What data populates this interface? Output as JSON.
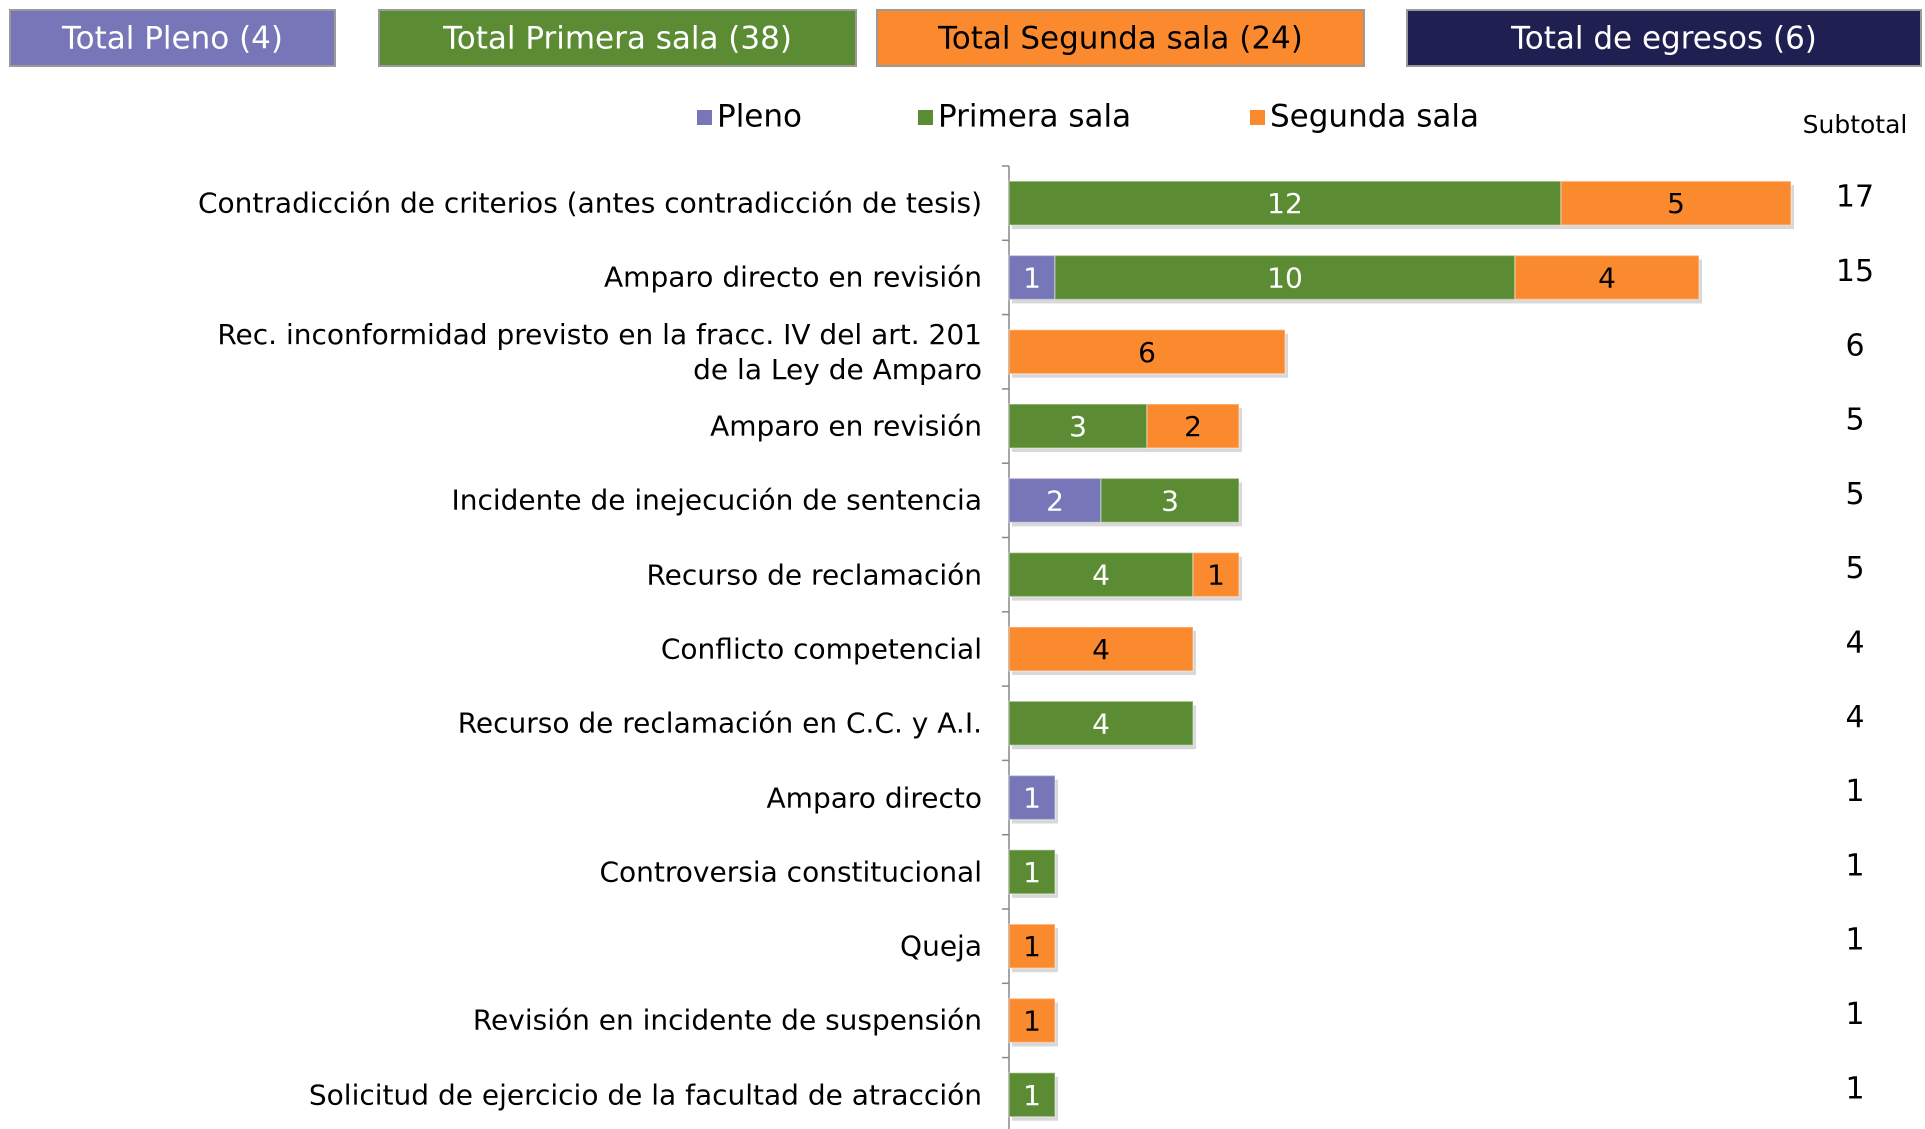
{
  "header": {
    "boxes": [
      {
        "label": "Total Pleno (4)",
        "color": "#7676b9",
        "text_color": "#ffffff"
      },
      {
        "label": "Total Primera sala (38)",
        "color": "#5b8c33",
        "text_color": "#ffffff"
      },
      {
        "label": "Total Segunda sala (24)",
        "color": "#fb8a2f",
        "text_color": "#000000"
      },
      {
        "label": "Total de egresos (6)",
        "color": "#1f1f52",
        "text_color": "#ffffff"
      }
    ]
  },
  "chart_data": {
    "type": "stacked_bar_horizontal",
    "categories": [
      "Contradicción de criterios (antes contradicción de tesis)",
      "Amparo directo en revisión",
      "Rec. inconformidad previsto en la fracc. IV del art. 201\nde la Ley de Amparo",
      "Amparo en revisión",
      "Incidente de inejecución de sentencia",
      "Recurso de reclamación",
      "Conflicto competencial",
      "Recurso de reclamación en C.C. y A.I.",
      "Amparo directo",
      "Controversia constitucional",
      "Queja",
      "Revisión en incidente de suspensión",
      "Solicitud de ejercicio de la facultad de atracción"
    ],
    "series": [
      {
        "name": "Pleno",
        "color": "#7676b9",
        "label_color": "#ffffff",
        "values": [
          null,
          1,
          null,
          null,
          2,
          null,
          null,
          null,
          1,
          null,
          null,
          null,
          null
        ]
      },
      {
        "name": "Primera sala",
        "color": "#5b8c33",
        "label_color": "#ffffff",
        "values": [
          12,
          10,
          null,
          3,
          3,
          4,
          null,
          4,
          null,
          1,
          null,
          null,
          1
        ]
      },
      {
        "name": "Segunda sala",
        "color": "#fb8a2f",
        "label_color": "#000000",
        "values": [
          5,
          4,
          6,
          2,
          null,
          1,
          4,
          null,
          null,
          null,
          1,
          1,
          null
        ]
      }
    ],
    "subtotal_label": "Subtotal",
    "subtotals": [
      17,
      15,
      6,
      5,
      5,
      5,
      4,
      4,
      1,
      1,
      1,
      1,
      1
    ],
    "xlim": [
      0,
      17
    ]
  }
}
